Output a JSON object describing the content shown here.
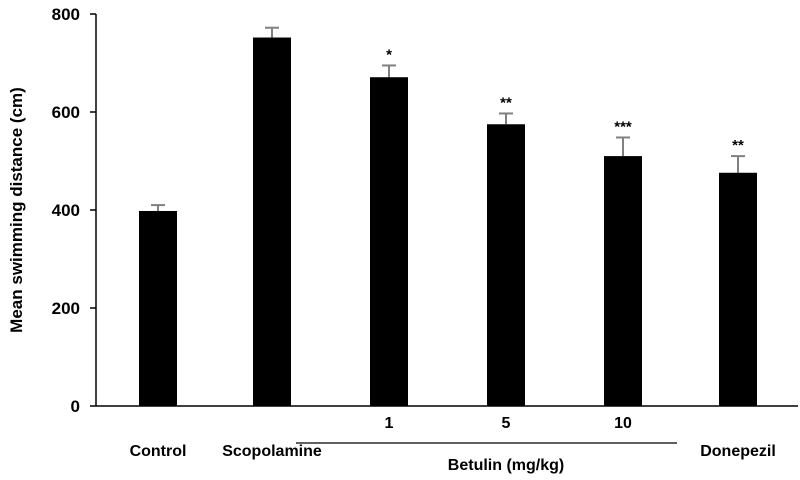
{
  "chart_data": {
    "type": "bar",
    "ylabel": "Mean swimming distance (cm)",
    "ylim": [
      0,
      800
    ],
    "yticks": [
      0,
      200,
      400,
      600,
      800
    ],
    "grid": false,
    "categories": [
      "Control",
      "Scopolamine",
      "1",
      "5",
      "10",
      "Donepezil"
    ],
    "values": [
      398,
      752,
      671,
      575,
      510,
      476
    ],
    "errors": [
      12,
      20,
      24,
      22,
      38,
      34
    ],
    "significance": [
      "",
      "",
      "*",
      "**",
      "***",
      "**"
    ],
    "group_label": "Betulin (mg/kg)",
    "group_members": [
      "1",
      "5",
      "10"
    ],
    "colors": {
      "bar": "#000000",
      "error_bar": "#808080",
      "axis": "#000000"
    }
  }
}
